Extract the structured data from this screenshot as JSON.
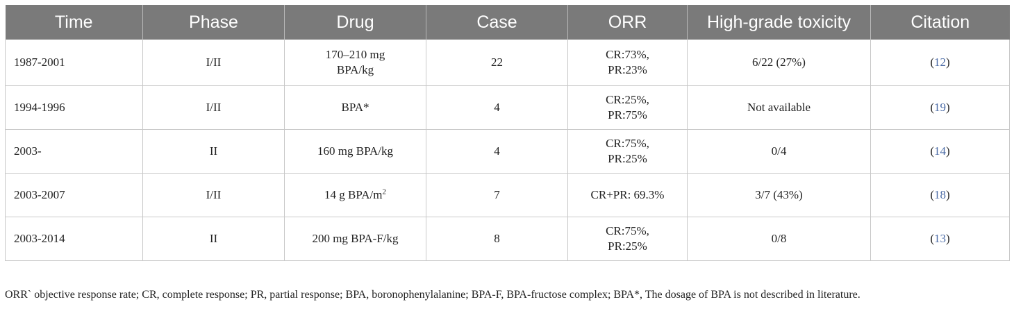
{
  "table": {
    "headers": [
      "Time",
      "Phase",
      "Drug",
      "Case",
      "ORR",
      "High-grade toxicity",
      "Citation"
    ],
    "rows": [
      {
        "time": "1987-2001",
        "phase": "I/II",
        "drug": {
          "line1": "170–210 mg",
          "line2": "BPA/kg"
        },
        "case": "22",
        "orr": {
          "line1": "CR:73%,",
          "line2": "PR:23%"
        },
        "toxicity": "6/22 (27%)",
        "citation": "12"
      },
      {
        "time": "1994-1996",
        "phase": "I/II",
        "drug": {
          "line1": "BPA*",
          "line2": ""
        },
        "case": "4",
        "orr": {
          "line1": "CR:25%,",
          "line2": "PR:75%"
        },
        "toxicity": "Not available",
        "citation": "19"
      },
      {
        "time": "2003-",
        "phase": "II",
        "drug": {
          "line1": "160 mg BPA/kg",
          "line2": ""
        },
        "case": "4",
        "orr": {
          "line1": "CR:75%,",
          "line2": "PR:25%"
        },
        "toxicity": "0/4",
        "citation": "14"
      },
      {
        "time": "2003-2007",
        "phase": "I/II",
        "drug": {
          "line1": "14 g BPA/m",
          "sup": "2"
        },
        "case": "7",
        "orr": {
          "line1": "CR+PR: 69.3%",
          "line2": ""
        },
        "toxicity": "3/7 (43%)",
        "citation": "18"
      },
      {
        "time": "2003-2014",
        "phase": "II",
        "drug": {
          "line1": "200 mg BPA-F/kg",
          "line2": ""
        },
        "case": "8",
        "orr": {
          "line1": "CR:75%,",
          "line2": "PR:25%"
        },
        "toxicity": "0/8",
        "citation": "13"
      }
    ]
  },
  "footnote": "ORR` objective response rate; CR, complete response; PR, partial response; BPA, boronophenylalanine; BPA-F, BPA-fructose complex; BPA*, The dosage of BPA is not described in literature."
}
